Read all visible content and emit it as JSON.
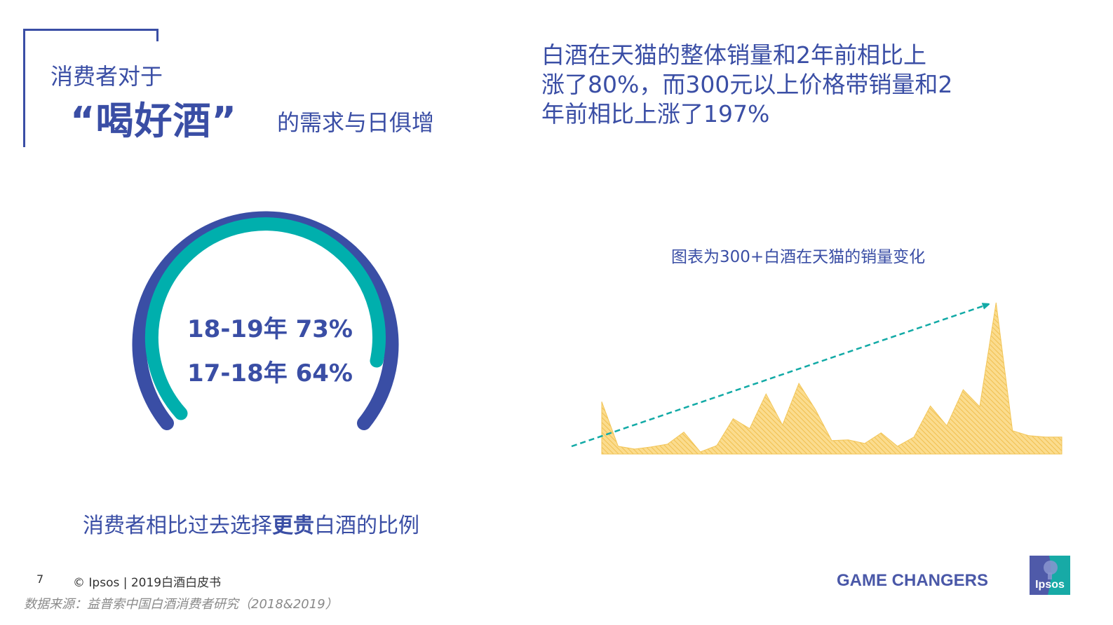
{
  "title": {
    "line1": "消费者对于",
    "quote": "“喝好酒”",
    "line3": "的需求与日俱增"
  },
  "headline": {
    "lines": [
      "白酒在天猫的整体销量和2年前相比上",
      "涨了80%，而300元以上价格带销量和2",
      "年前相比上涨了197%"
    ]
  },
  "gauge": {
    "line1": "18-19年 73%",
    "line2": "17-18年 64%",
    "colors": {
      "outer": "#3a4ea5",
      "inner": "#00afad"
    }
  },
  "caption": {
    "prefix": "消费者相比过去选择",
    "bold": "更贵",
    "suffix": "白酒的比例"
  },
  "chart_title": "图表为300+白酒在天猫的销量变化",
  "chart_data": {
    "type": "area",
    "title": "图表为300+白酒在天猫的销量变化",
    "xlabel": "",
    "ylabel": "",
    "grid": false,
    "legend": "none",
    "annotations": [
      "dashed upward trend arrow (teal)"
    ],
    "x": [
      1,
      2,
      3,
      4,
      5,
      6,
      7,
      8,
      9,
      10,
      11,
      12,
      13,
      14,
      15,
      16,
      17,
      18,
      19,
      20,
      21,
      22,
      23,
      24,
      25,
      26,
      27,
      28,
      29
    ],
    "values": [
      74,
      11,
      7,
      10,
      14,
      31,
      3,
      12,
      50,
      36,
      85,
      41,
      100,
      63,
      19,
      20,
      15,
      30,
      11,
      24,
      68,
      40,
      91,
      67,
      214,
      33,
      26,
      24,
      24
    ],
    "colors": {
      "area": "#f5c95e",
      "trend": "#12aaa6"
    }
  },
  "footer": {
    "page_number": "7",
    "copyright": "© Ipsos | 2019白酒白皮书",
    "source": "数据来源：益普索中国白酒消费者研究（2018&2019）",
    "tagline": "GAME CHANGERS",
    "logo_text": "Ipsos"
  }
}
